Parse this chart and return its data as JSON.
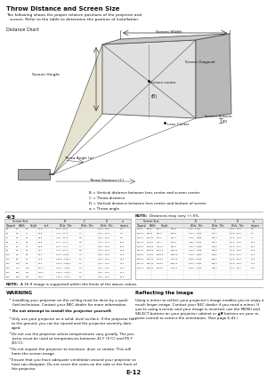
{
  "title": "Throw Distance and Screen Size",
  "subtitle_line1": "The following shows the proper relative positions of the projector and",
  "subtitle_line2": "   screen. Refer to the table to determine the position of installation.",
  "distance_chart_label": "Distance Chart",
  "screen_width_label": "Screen Width",
  "screen_diagonal_label": "Screen Diagonal",
  "screen_height_label": "Screen Height",
  "screen_center_label": "Screen center",
  "screen_bottom_label": "Screen Bottom",
  "lens_center_label": "Lens Center",
  "throw_angle_label": "Throw Angle (α)",
  "throw_distance_label": "Throw Distance (C)",
  "B_label": "(B)",
  "D_label": "(D)",
  "legend_B": "B = Vertical distance between lens center and screen center",
  "legend_C": "C = Throw distance",
  "legend_D": "D = Vertical distance between lens center and bottom of screen",
  "legend_alpha": "α = Throw angle",
  "ratio_label": "4/3",
  "note_distances": "NOTE: Distances may vary +/-5%.",
  "note2_label": "NOTE: A 16:9 image is supported within the limits of the above values.",
  "warning_title": "WARNING",
  "warn_b1": "Installing your projector on the ceiling must be done by a quali-\nfied technician. Contact your NEC dealer for more information.",
  "warn_b2": "Do not attempt to install the projector yourself.",
  "bullets": [
    "Only use your projector on a solid, level surface. If the projector falls\nto the ground, you can be injured and the projector severely dam-\naged.",
    "Do not use the projector where temperatures vary greatly. The pro-\njector must be used at temperatures between 41 F (5°C) and 95 F\n(35°C).",
    "Do not expose the projector to moisture, dust, or smoke. This will\nharm the screen image.",
    "Ensure that you have adequate ventilation around your projector so\nheat can dissipate. Do not cover the vents on the side or the front of\nthe projector."
  ],
  "reflecting_title": "Reflecting the Image",
  "reflecting_text": "Using a mirror to reflect your projector's image enables you to enjoy a\nmuch larger image. Contact your NEC dealer if you need a mirror. If\nyou're using a mirror and your image is inverted, use the MENU and\nSELECT buttons on your projector cabinet or ▲▼ buttons on your re-\nmote control to correct the orientation. (See page E-41.)",
  "page_label": "E-12",
  "bg_color": "#ffffff"
}
